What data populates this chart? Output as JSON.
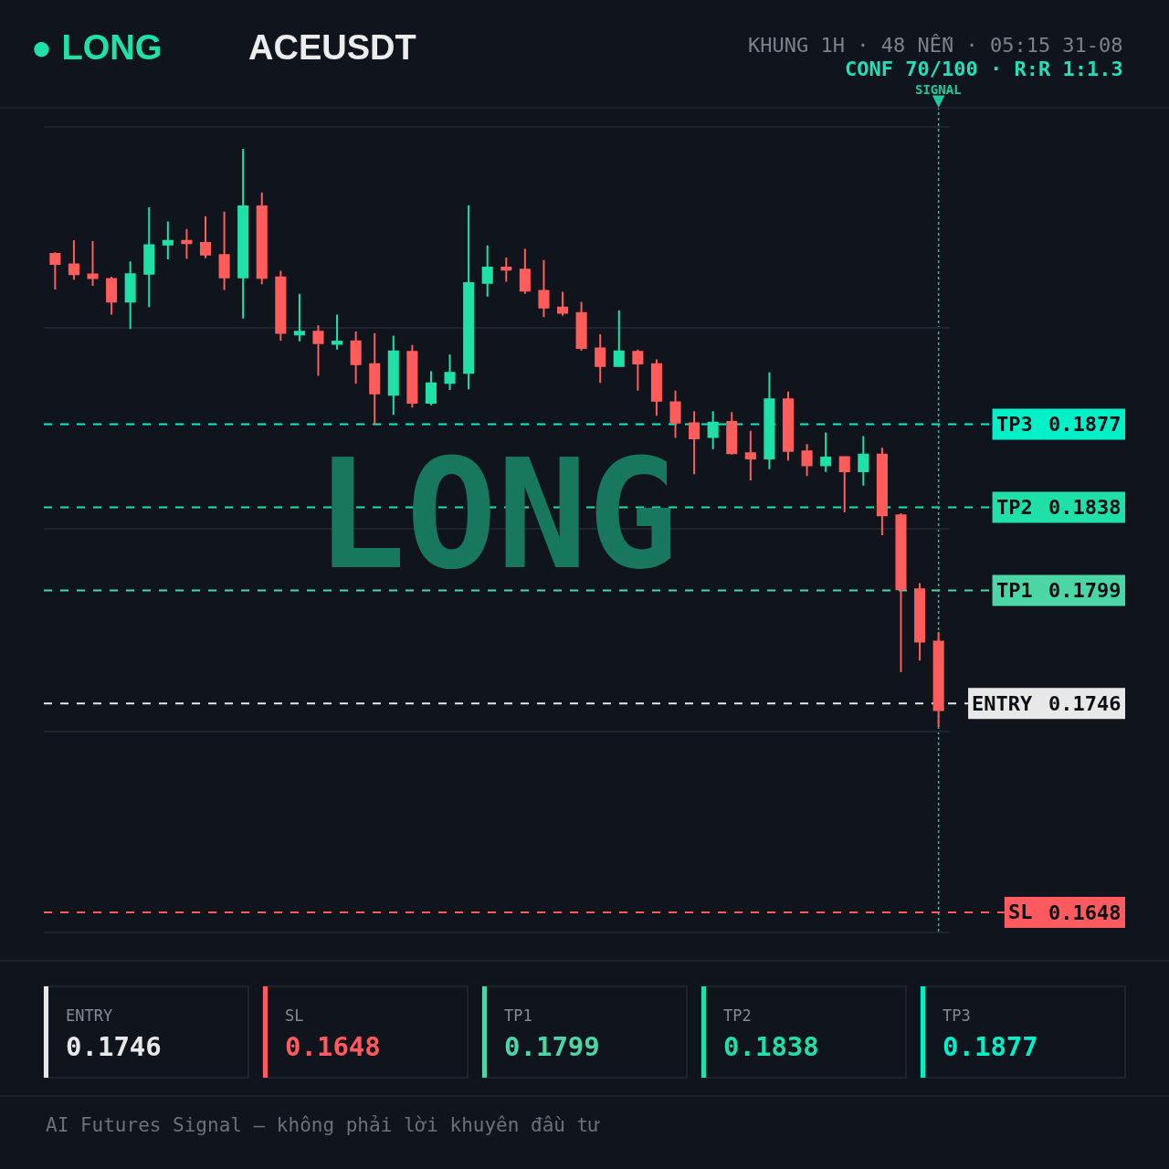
{
  "chart_data": [
    {
      "type": "candlestick",
      "title": "ACEUSDT",
      "subtitle": "KHUNG 1H · 48 NẾN · 05:15 31-08",
      "categories": [
        null,
        null,
        null,
        null,
        null,
        null,
        null,
        null,
        null,
        null,
        null,
        null,
        null,
        null,
        null,
        null,
        null,
        null,
        null,
        null,
        null,
        null,
        null,
        null,
        null,
        null,
        null,
        null,
        null,
        null,
        null,
        null,
        null,
        null,
        null,
        null,
        null,
        null,
        null,
        null,
        null,
        null,
        null,
        null,
        null,
        null,
        null,
        null
      ],
      "ohlc": [
        [
          0.19569,
          0.19576,
          0.19402,
          0.19522
        ],
        [
          0.19519,
          0.19633,
          0.19448,
          0.19473
        ],
        [
          0.19472,
          0.19629,
          0.19419,
          0.19455
        ],
        [
          0.19451,
          0.19462,
          0.19284,
          0.19345
        ],
        [
          0.19345,
          0.19533,
          0.19216,
          0.19473
        ],
        [
          0.19476,
          0.19787,
          0.19319,
          0.19609
        ],
        [
          0.19613,
          0.19721,
          0.19543,
          0.1963
        ],
        [
          0.1963,
          0.19686,
          0.19545,
          0.19619
        ],
        [
          0.1962,
          0.19746,
          0.19548,
          0.19566
        ],
        [
          0.19563,
          0.19767,
          0.194,
          0.19458
        ],
        [
          0.19458,
          0.20061,
          0.19266,
          0.19792
        ],
        [
          0.19792,
          0.19857,
          0.19426,
          0.19456
        ],
        [
          0.19458,
          0.1949,
          0.19162,
          0.19198
        ],
        [
          0.19191,
          0.19381,
          0.19159,
          0.19204
        ],
        [
          0.19204,
          0.19234,
          0.18997,
          0.1915
        ],
        [
          0.19147,
          0.19284,
          0.1912,
          0.19158
        ],
        [
          0.19159,
          0.19205,
          0.1896,
          0.19051
        ],
        [
          0.19051,
          0.19197,
          0.18767,
          0.18914
        ],
        [
          0.18908,
          0.19185,
          0.18814,
          0.19111
        ],
        [
          0.19109,
          0.19141,
          0.18848,
          0.1887
        ],
        [
          0.18871,
          0.19018,
          0.18859,
          0.18961
        ],
        [
          0.18964,
          0.19097,
          0.1893,
          0.19011
        ],
        [
          0.19011,
          0.19797,
          0.18934,
          0.19432
        ],
        [
          0.19433,
          0.19608,
          0.19369,
          0.19505
        ],
        [
          0.19505,
          0.19552,
          0.19438,
          0.19495
        ],
        [
          0.19495,
          0.19592,
          0.19381,
          0.19396
        ],
        [
          0.19395,
          0.1954,
          0.19272,
          0.19317
        ],
        [
          0.19317,
          0.19391,
          0.19279,
          0.19293
        ],
        [
          0.19291,
          0.19344,
          0.19115,
          0.19127
        ],
        [
          0.19125,
          0.19192,
          0.18964,
          0.19043
        ],
        [
          0.19043,
          0.19304,
          0.1904,
          0.19111
        ],
        [
          0.19109,
          0.1912,
          0.18927,
          0.19055
        ],
        [
          0.19052,
          0.19074,
          0.18809,
          0.1888
        ],
        [
          0.18873,
          0.18927,
          0.18706,
          0.18777
        ],
        [
          0.18774,
          0.18831,
          0.18535,
          0.18703
        ],
        [
          0.1871,
          0.18831,
          0.18653,
          0.18777
        ],
        [
          0.1878,
          0.18827,
          0.18627,
          0.18634
        ],
        [
          0.18634,
          0.18739,
          0.18506,
          0.18609
        ],
        [
          0.18609,
          0.19013,
          0.18559,
          0.18887
        ],
        [
          0.18887,
          0.18923,
          0.18599,
          0.18645
        ],
        [
          0.18642,
          0.18677,
          0.18527,
          0.18577
        ],
        [
          0.18577,
          0.18731,
          0.18546,
          0.18613
        ],
        [
          0.18616,
          0.1862,
          0.18356,
          0.18549
        ],
        [
          0.18549,
          0.18714,
          0.18482,
          0.18627
        ],
        [
          0.18627,
          0.1866,
          0.18249,
          0.18342
        ],
        [
          0.18342,
          0.18352,
          0.17607,
          0.17995
        ],
        [
          0.17995,
          0.18024,
          0.17661,
          0.1775
        ],
        [
          0.1775,
          0.17795,
          0.1735,
          0.17429
        ]
      ],
      "colors": [
        "#ff5c5c",
        "#ff5c5c",
        "#ff5c5c",
        "#ff5c5c",
        "#1fe0a7",
        "#1fe0a7",
        "#1fe0a7",
        "#ff5c5c",
        "#ff5c5c",
        "#ff5c5c",
        "#1fe0a7",
        "#ff5c5c",
        "#ff5c5c",
        "#1fe0a7",
        "#ff5c5c",
        "#1fe0a7",
        "#ff5c5c",
        "#ff5c5c",
        "#1fe0a7",
        "#ff5c5c",
        "#1fe0a7",
        "#1fe0a7",
        "#1fe0a7",
        "#1fe0a7",
        "#ff5c5c",
        "#ff5c5c",
        "#ff5c5c",
        "#ff5c5c",
        "#ff5c5c",
        "#ff5c5c",
        "#1fe0a7",
        "#ff5c5c",
        "#ff5c5c",
        "#ff5c5c",
        "#ff5c5c",
        "#1fe0a7",
        "#ff5c5c",
        "#ff5c5c",
        "#1fe0a7",
        "#ff5c5c",
        "#ff5c5c",
        "#1fe0a7",
        "#ff5c5c",
        "#1fe0a7",
        "#ff5c5c",
        "#ff5c5c",
        "#ff5c5c",
        "#ff5c5c"
      ],
      "ylim": [
        0.1639,
        0.2016
      ],
      "yticks": [
        0.1648,
        0.1746,
        0.1799,
        0.1838,
        0.1877,
        {
          "value": 0.1639,
          "label": null
        },
        {
          "value": 0.1733,
          "label": null
        },
        {
          "value": 0.1828,
          "label": null
        },
        {
          "value": 0.1922,
          "label": null
        },
        {
          "value": 0.2016,
          "label": null
        }
      ],
      "grid": "y",
      "tick_labels": "y",
      "ref_lines": [
        {
          "axis": "y",
          "value": 0.1877,
          "label": "TP3",
          "color": "#00f0c8",
          "line_style": "dashed"
        },
        {
          "axis": "y",
          "value": 0.1838,
          "label": "TP2",
          "color": "#1fe0a8",
          "line_style": "dashed"
        },
        {
          "axis": "y",
          "value": 0.1799,
          "label": "TP1",
          "color": "#4cd6a6",
          "line_style": "dashed"
        },
        {
          "axis": "y",
          "value": 0.1746,
          "label": "ENTRY",
          "color": "#e8e8e8",
          "line_style": "dashed"
        },
        {
          "axis": "y",
          "value": 0.1648,
          "label": "SL",
          "color": "#ff5a5f",
          "line_style": "dashed"
        },
        {
          "axis": "x",
          "label": "SIGNAL",
          "color": "#1fc9a0",
          "line_style": "dotted"
        }
      ],
      "annotations": [
        "● LONG",
        "CONF 70/100 · R:R 1:1.3",
        "LONG",
        "AI Futures Signal — không phải lời khuyên đầu tư"
      ]
    },
    {
      "type": "other",
      "categories": [
        "ENTRY",
        "SL",
        "TP1",
        "TP2",
        "TP3"
      ],
      "values": [
        0.1746,
        0.1648,
        0.1799,
        0.1838,
        0.1877
      ],
      "colors": [
        "#e8e8e8",
        "#ff5a5f",
        "#4cd6a6",
        "#1fe0a8",
        "#00f0c8"
      ],
      "data_labels": true
    }
  ]
}
